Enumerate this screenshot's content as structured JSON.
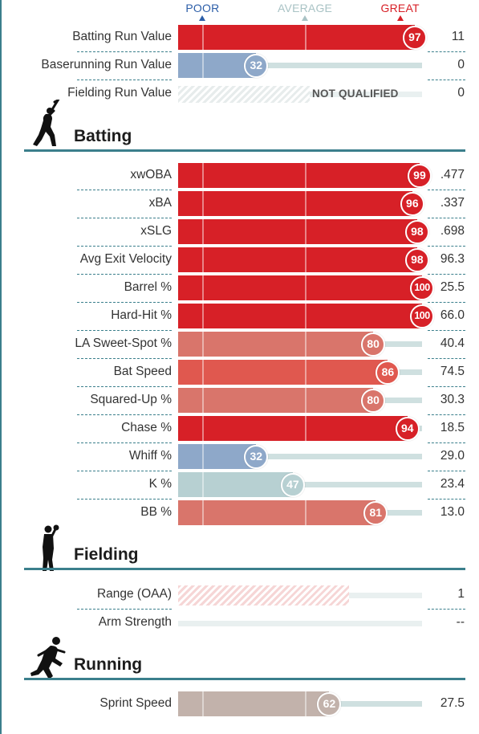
{
  "scale": {
    "poor": "POOR",
    "average": "AVERAGE",
    "great": "GREAT"
  },
  "colors": {
    "great_red": "#d72027",
    "above_avg": "#e0584f",
    "mild_red": "#d9756b",
    "below_avg_blue": "#8ea8c9",
    "average_teal": "#b7d0d2",
    "neutral_tan": "#c2b2ab",
    "axis_teal": "#3b7f8c"
  },
  "chart_data": {
    "type": "bar",
    "xlim": [
      0,
      100
    ],
    "summary": [
      {
        "label": "Batting Run Value",
        "percentile": 97,
        "value": "11"
      },
      {
        "label": "Baserunning Run Value",
        "percentile": 32,
        "value": "0"
      },
      {
        "label": "Fielding Run Value",
        "percentile": null,
        "value": "0",
        "note": "NOT QUALIFIED"
      }
    ],
    "sections": [
      {
        "title": "Batting",
        "icon": "batter-icon",
        "rows": [
          {
            "label": "xwOBA",
            "percentile": 99,
            "value": ".477"
          },
          {
            "label": "xBA",
            "percentile": 96,
            "value": ".337"
          },
          {
            "label": "xSLG",
            "percentile": 98,
            "value": ".698"
          },
          {
            "label": "Avg Exit Velocity",
            "percentile": 98,
            "value": "96.3"
          },
          {
            "label": "Barrel %",
            "percentile": 100,
            "value": "25.5"
          },
          {
            "label": "Hard-Hit %",
            "percentile": 100,
            "value": "66.0"
          },
          {
            "label": "LA Sweet-Spot %",
            "percentile": 80,
            "value": "40.4"
          },
          {
            "label": "Bat Speed",
            "percentile": 86,
            "value": "74.5"
          },
          {
            "label": "Squared-Up %",
            "percentile": 80,
            "value": "30.3"
          },
          {
            "label": "Chase %",
            "percentile": 94,
            "value": "18.5"
          },
          {
            "label": "Whiff %",
            "percentile": 32,
            "value": "29.0"
          },
          {
            "label": "K %",
            "percentile": 47,
            "value": "23.4"
          },
          {
            "label": "BB %",
            "percentile": 81,
            "value": "13.0"
          }
        ]
      },
      {
        "title": "Fielding",
        "icon": "fielder-icon",
        "rows": [
          {
            "label": "Range (OAA)",
            "percentile": 70,
            "value": "1",
            "unqualified": true
          },
          {
            "label": "Arm Strength",
            "percentile": null,
            "value": "--"
          }
        ]
      },
      {
        "title": "Running",
        "icon": "runner-icon",
        "rows": [
          {
            "label": "Sprint Speed",
            "percentile": 62,
            "value": "27.5",
            "neutral": true
          }
        ]
      }
    ]
  }
}
